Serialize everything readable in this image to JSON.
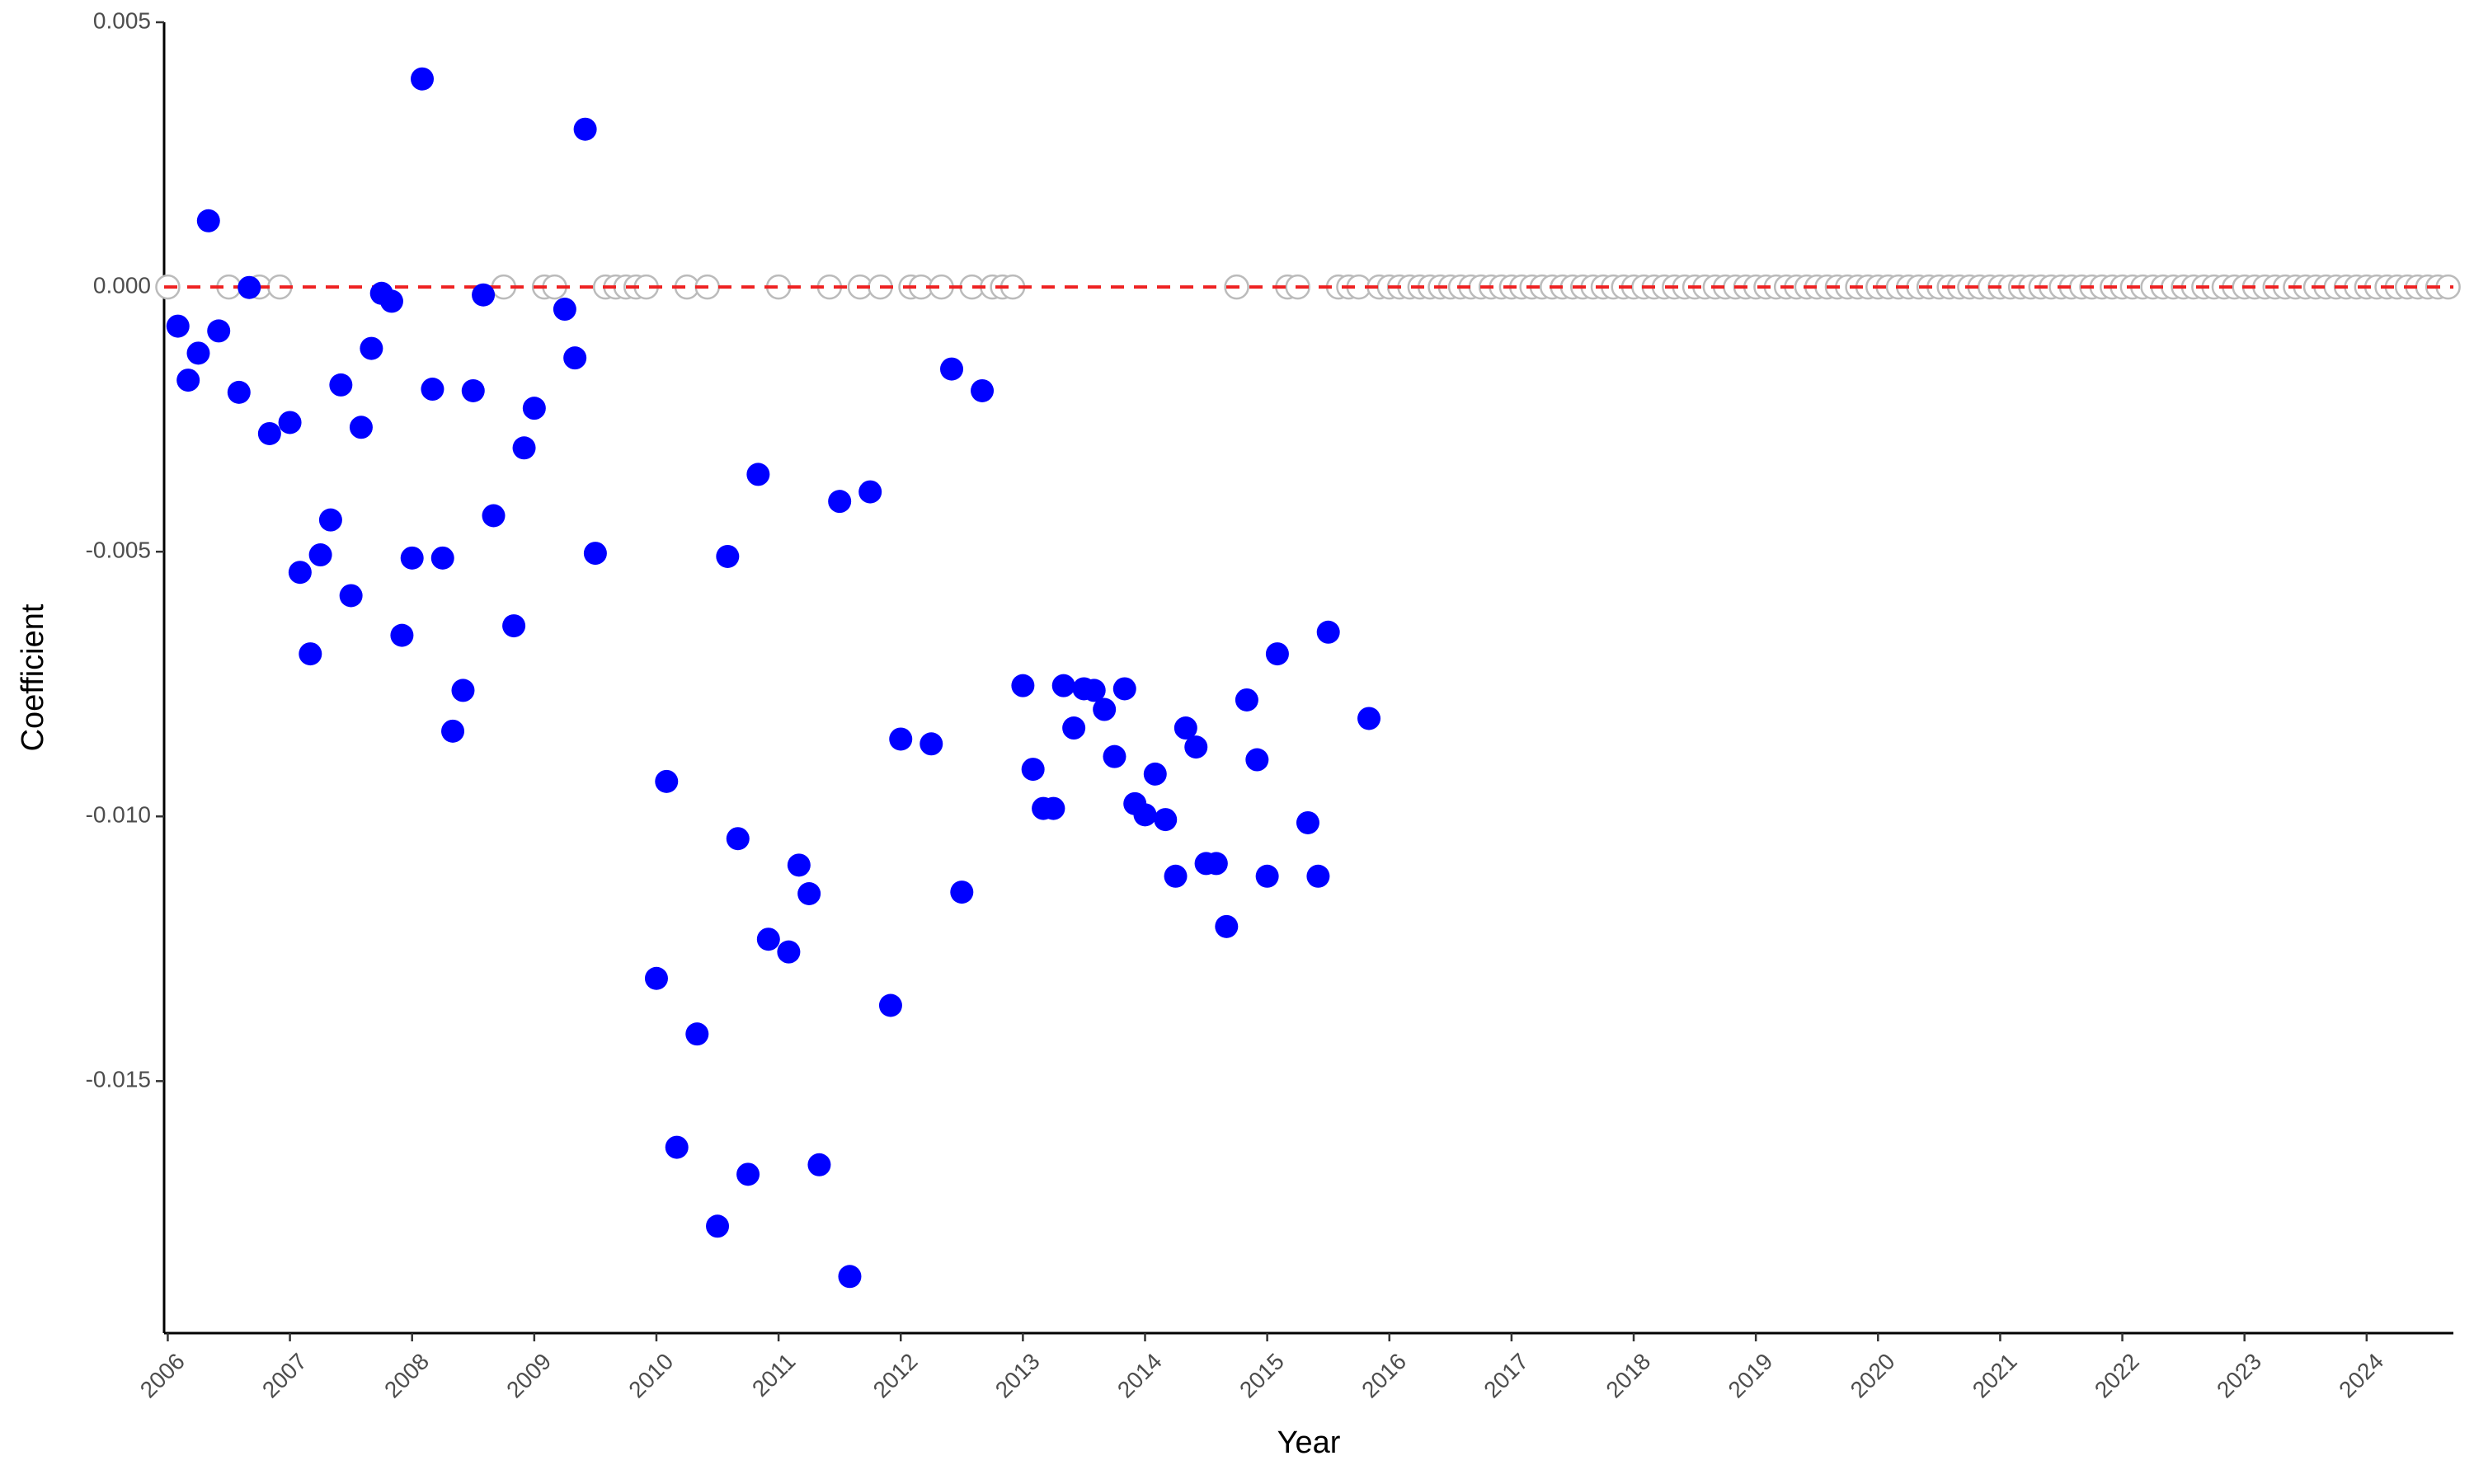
{
  "chart_data": {
    "type": "scatter",
    "xlabel": "Year",
    "ylabel": "Coefficient",
    "xlim": [
      2005.97,
      2024.71
    ],
    "xticks": [
      2006,
      2007,
      2008,
      2009,
      2010,
      2011,
      2012,
      2013,
      2014,
      2015,
      2016,
      2017,
      2018,
      2019,
      2020,
      2021,
      2022,
      2023,
      2024
    ],
    "ylim": [
      -0.01976,
      0.005
    ],
    "yticks": [
      0.005,
      {
        "value": 0,
        "label": "0.000"
      },
      -0.005,
      {
        "value": -0.01,
        "label": "-0.010"
      },
      -0.015
    ],
    "hline": {
      "value": 0,
      "color": "#ee2222",
      "dashed": true
    },
    "series": [
      {
        "color": "#bbbbbb",
        "hollow": true,
        "x": [
          2006.0,
          2006.5,
          2006.75,
          2006.917,
          2008.75,
          2009.083,
          2009.167,
          2009.583,
          2009.667,
          2009.75,
          2009.833,
          2009.917,
          2010.25,
          2010.417,
          2011.0,
          2011.417,
          2011.667,
          2011.833,
          2012.083,
          2012.167,
          2012.333,
          2012.583,
          2012.75,
          2012.833,
          2012.917,
          2014.75,
          2015.167,
          2015.25,
          2015.583,
          2015.667,
          2015.75,
          2015.917,
          2016.0,
          2016.083,
          2016.167,
          2016.25,
          2016.333,
          2016.417,
          2016.5,
          2016.583,
          2016.667,
          2016.75,
          2016.833,
          2016.917,
          2017.0,
          2017.083,
          2017.167,
          2017.25,
          2017.333,
          2017.417,
          2017.5,
          2017.583,
          2017.667,
          2017.75,
          2017.833,
          2017.917,
          2018.0,
          2018.083,
          2018.167,
          2018.25,
          2018.333,
          2018.417,
          2018.5,
          2018.583,
          2018.667,
          2018.75,
          2018.833,
          2018.917,
          2019.0,
          2019.083,
          2019.167,
          2019.25,
          2019.333,
          2019.417,
          2019.5,
          2019.583,
          2019.667,
          2019.75,
          2019.833,
          2019.917,
          2020.0,
          2020.083,
          2020.167,
          2020.25,
          2020.333,
          2020.417,
          2020.5,
          2020.583,
          2020.667,
          2020.75,
          2020.833,
          2020.917,
          2021.0,
          2021.083,
          2021.167,
          2021.25,
          2021.333,
          2021.417,
          2021.5,
          2021.583,
          2021.667,
          2021.75,
          2021.833,
          2021.917,
          2022.0,
          2022.083,
          2022.167,
          2022.25,
          2022.333,
          2022.417,
          2022.5,
          2022.583,
          2022.667,
          2022.75,
          2022.833,
          2022.917,
          2023.0,
          2023.083,
          2023.167,
          2023.25,
          2023.333,
          2023.417,
          2023.5,
          2023.583,
          2023.667,
          2023.75,
          2023.833,
          2023.917,
          2024.0,
          2024.083,
          2024.167,
          2024.25,
          2024.333,
          2024.417,
          2024.5,
          2024.583,
          2024.667
        ],
        "values": [
          0,
          0,
          0,
          0,
          0,
          0,
          0,
          0,
          0,
          0,
          0,
          0,
          0,
          0,
          0,
          0,
          0,
          0,
          0,
          0,
          0,
          0,
          0,
          0,
          0,
          0,
          0,
          0,
          0,
          0,
          0,
          0,
          0,
          0,
          0,
          0,
          0,
          0,
          0,
          0,
          0,
          0,
          0,
          0,
          0,
          0,
          0,
          0,
          0,
          0,
          0,
          0,
          0,
          0,
          0,
          0,
          0,
          0,
          0,
          0,
          0,
          0,
          0,
          0,
          0,
          0,
          0,
          0,
          0,
          0,
          0,
          0,
          0,
          0,
          0,
          0,
          0,
          0,
          0,
          0,
          0,
          0,
          0,
          0,
          0,
          0,
          0,
          0,
          0,
          0,
          0,
          0,
          0,
          0,
          0,
          0,
          0,
          0,
          0,
          0,
          0,
          0,
          0,
          0,
          0,
          0,
          0,
          0,
          0,
          0,
          0,
          0,
          0,
          0,
          0,
          0,
          0,
          0,
          0,
          0,
          0,
          0,
          0,
          0,
          0,
          0,
          0,
          0,
          0,
          0,
          0,
          0,
          0,
          0,
          0,
          0,
          0
        ]
      },
      {
        "color": "#0000ff",
        "x": [
          2006.083,
          2006.167,
          2006.25,
          2006.333,
          2006.417,
          2006.583,
          2006.667,
          2006.833,
          2007.0,
          2007.083,
          2007.167,
          2007.25,
          2007.333,
          2007.417,
          2007.5,
          2007.583,
          2007.667,
          2007.75,
          2007.833,
          2007.917,
          2008.0,
          2008.083,
          2008.167,
          2008.25,
          2008.333,
          2008.417,
          2008.5,
          2008.583,
          2008.667,
          2008.833,
          2008.917,
          2009.0,
          2009.25,
          2009.333,
          2009.417,
          2009.5,
          2010.0,
          2010.083,
          2010.167,
          2010.333,
          2010.5,
          2010.583,
          2010.667,
          2010.75,
          2010.833,
          2010.917,
          2011.083,
          2011.167,
          2011.25,
          2011.333,
          2011.5,
          2011.583,
          2011.75,
          2011.917,
          2012.0,
          2012.25,
          2012.417,
          2012.5,
          2012.667,
          2013.0,
          2013.083,
          2013.167,
          2013.25,
          2013.333,
          2013.417,
          2013.5,
          2013.583,
          2013.667,
          2013.75,
          2013.833,
          2013.917,
          2014.0,
          2014.083,
          2014.167,
          2014.25,
          2014.333,
          2014.417,
          2014.5,
          2014.583,
          2014.667,
          2014.833,
          2014.917,
          2015.0,
          2015.083,
          2015.333,
          2015.417,
          2015.5,
          2015.833
        ],
        "values": [
          -0.00074,
          -0.00176,
          -0.00125,
          0.00125,
          -0.00083,
          -0.00199,
          -1e-05,
          -0.00277,
          -0.00256,
          -0.00539,
          -0.00693,
          -0.00506,
          -0.0044,
          -0.00185,
          -0.00583,
          -0.00265,
          -0.00116,
          -0.00012,
          -0.00027,
          -0.00658,
          -0.00512,
          0.00393,
          -0.00193,
          -0.00512,
          -0.00839,
          -0.00762,
          -0.00196,
          -0.00015,
          -0.00432,
          -0.0064,
          -0.00304,
          -0.00229,
          -0.00042,
          -0.00134,
          0.00298,
          -0.00503,
          -0.01306,
          -0.00934,
          -0.01625,
          -0.01411,
          -0.01774,
          -0.00509,
          -0.01042,
          -0.01676,
          -0.00354,
          -0.01232,
          -0.01256,
          -0.01092,
          -0.01146,
          -0.01658,
          -0.00405,
          -0.01869,
          -0.00387,
          -0.01357,
          -0.00854,
          -0.00863,
          -0.00155,
          -0.01143,
          -0.00196,
          -0.00753,
          -0.00911,
          -0.00985,
          -0.00985,
          -0.00753,
          -0.00833,
          -0.00759,
          -0.00762,
          -0.00798,
          -0.00887,
          -0.00759,
          -0.00976,
          -0.00997,
          -0.0092,
          -0.01006,
          -0.01113,
          -0.00833,
          -0.00869,
          -0.01089,
          -0.01089,
          -0.01208,
          -0.0078,
          -0.00893,
          -0.01113,
          -0.00693,
          -0.01012,
          -0.01113,
          -0.00652,
          -0.00815
        ]
      }
    ]
  }
}
